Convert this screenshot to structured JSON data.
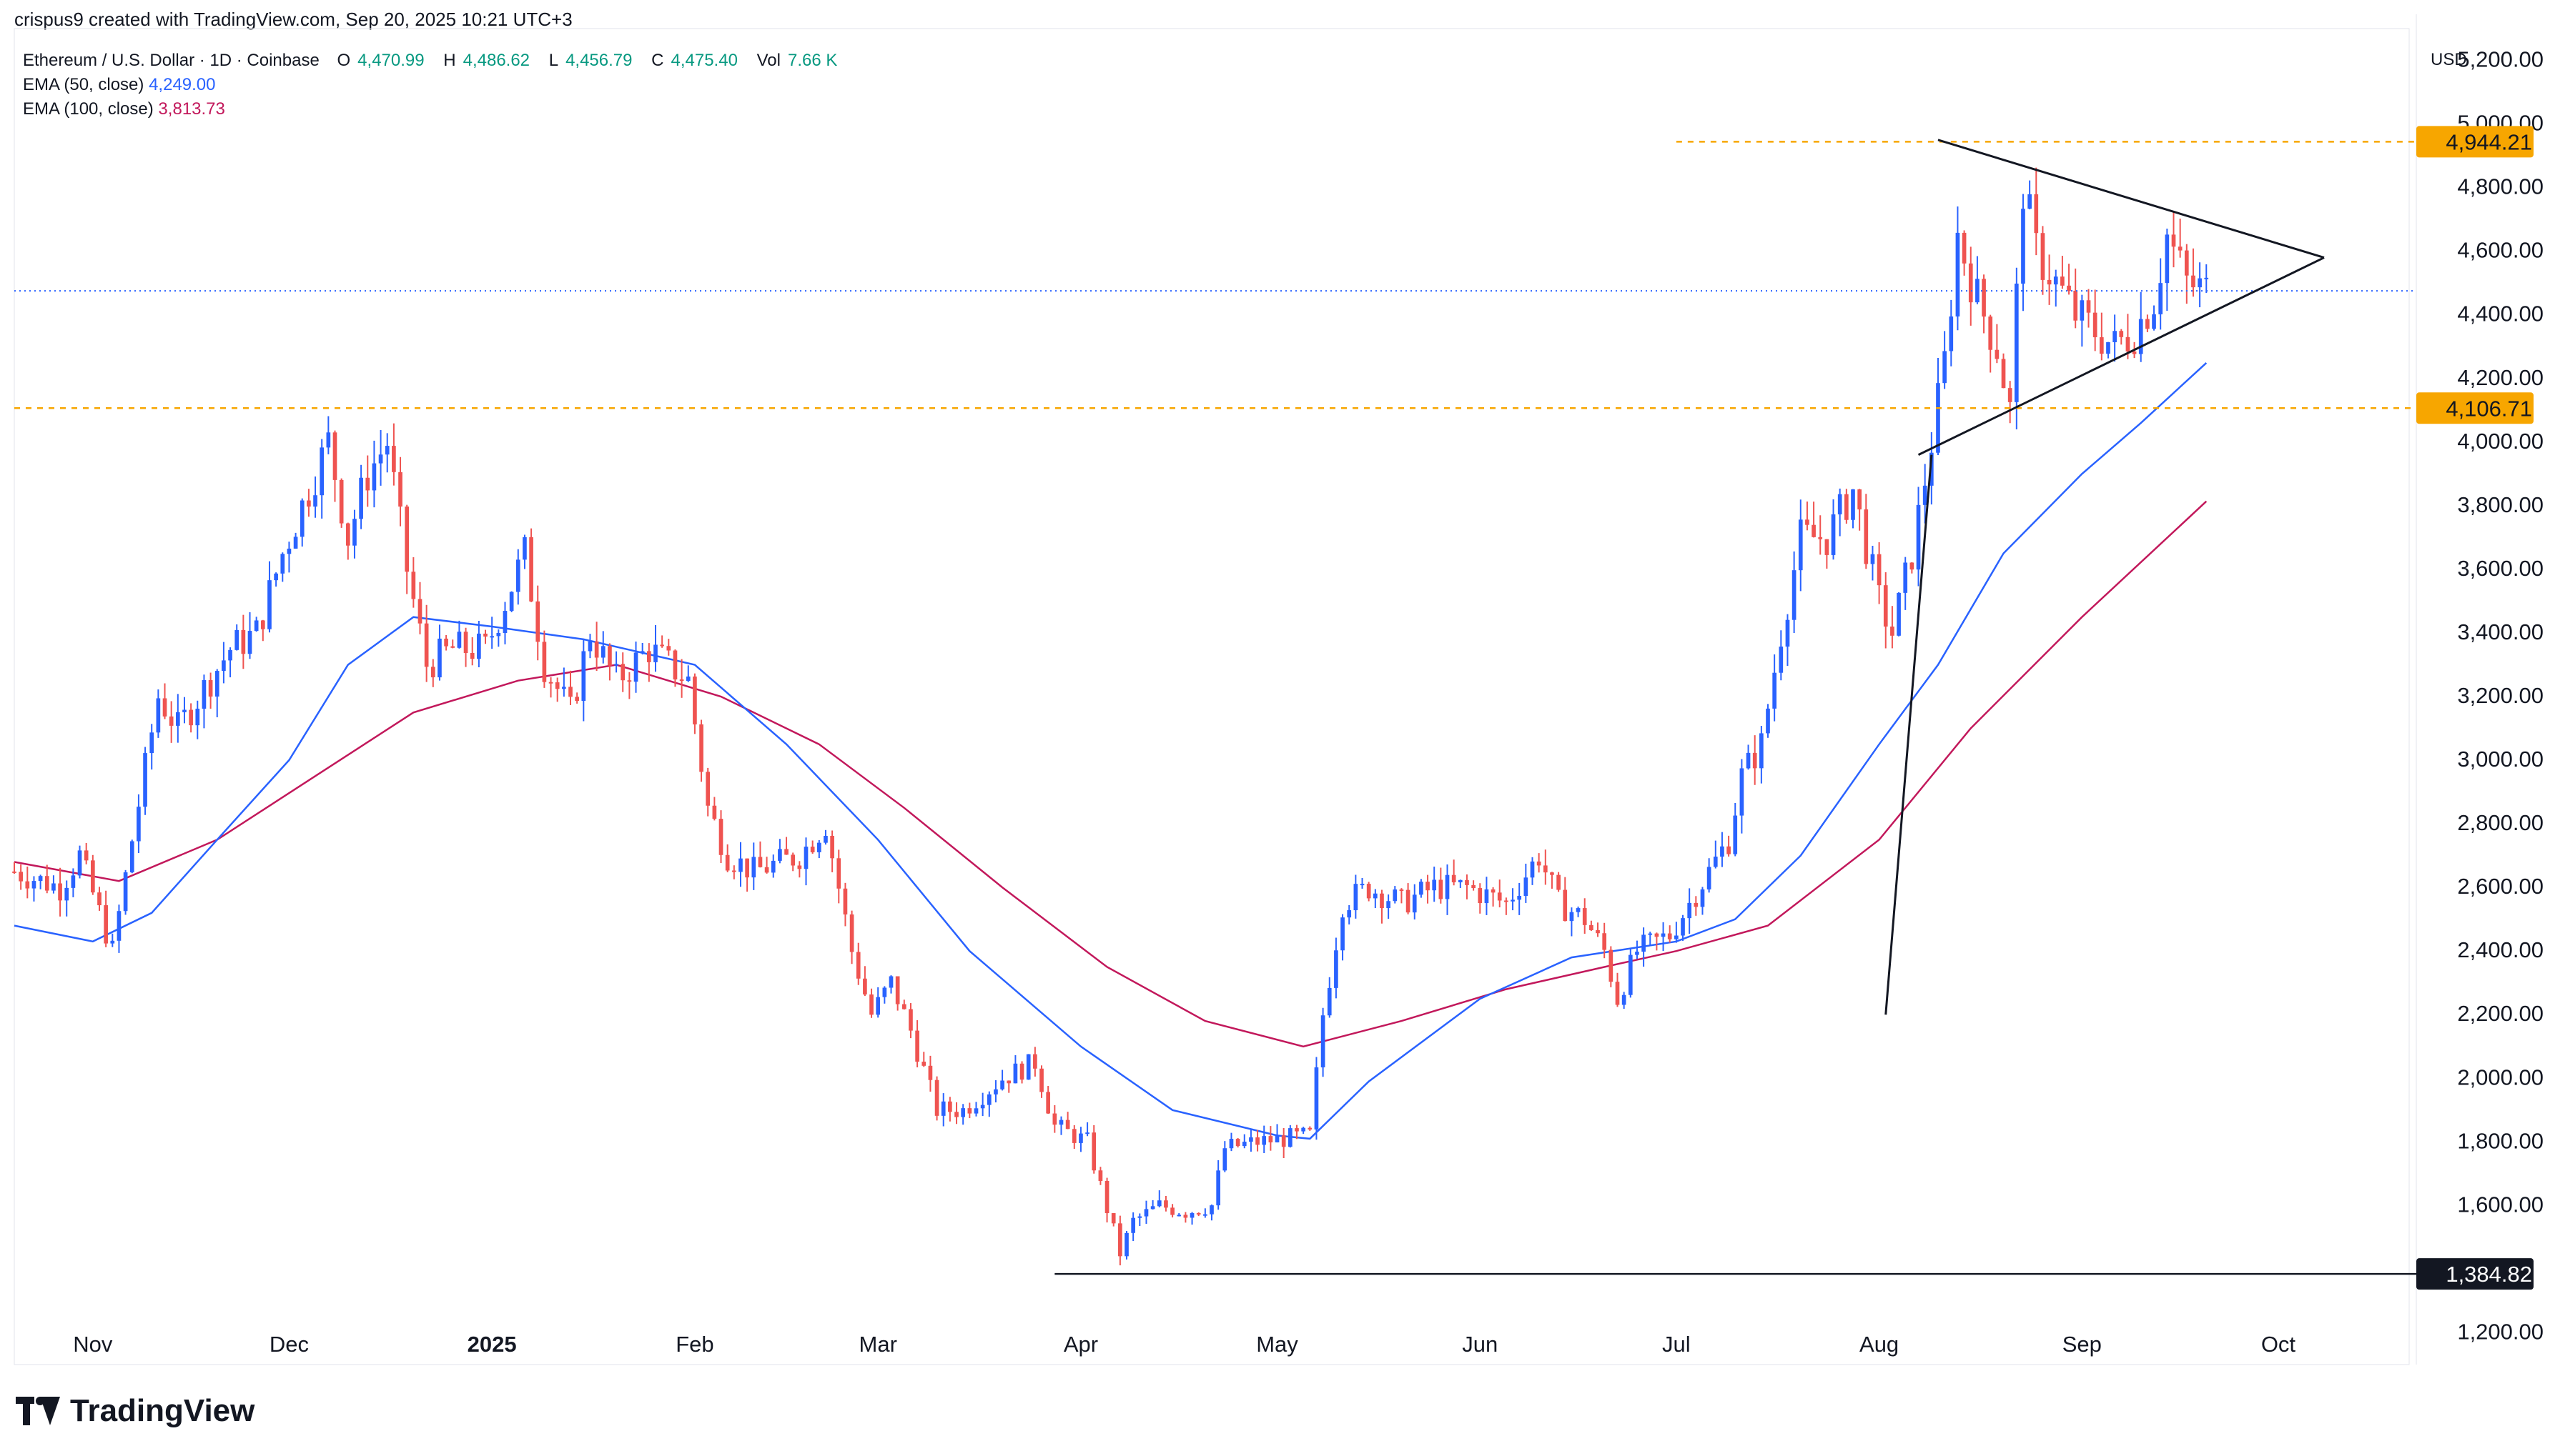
{
  "header": {
    "created_by": "crispus9 created with TradingView.com, Sep 20, 2025 10:21 UTC+3"
  },
  "legend": {
    "symbol": "Ethereum / U.S. Dollar · 1D · Coinbase",
    "ohlc": [
      {
        "k": "O",
        "v": "4,470.99"
      },
      {
        "k": "H",
        "v": "4,486.62"
      },
      {
        "k": "L",
        "v": "4,456.79"
      },
      {
        "k": "C",
        "v": "4,475.40"
      },
      {
        "k": "Vol",
        "v": "7.66 K"
      }
    ],
    "ema50_label": "EMA (50, close)",
    "ema50_value": "4,249.00",
    "ema100_label": "EMA (100, close)",
    "ema100_value": "3,813.73"
  },
  "axis": {
    "currency": "USD",
    "y_ticks": [
      "1,200.00",
      "1,600.00",
      "1,800.00",
      "2,000.00",
      "2,200.00",
      "2,400.00",
      "2,600.00",
      "2,800.00",
      "3,000.00",
      "3,200.00",
      "3,400.00",
      "3,600.00",
      "3,800.00",
      "4,000.00",
      "4,200.00",
      "4,400.00",
      "4,600.00",
      "4,800.00",
      "5,000.00",
      "5,200.00"
    ],
    "y_tick_values": [
      1200,
      1600,
      1800,
      2000,
      2200,
      2400,
      2600,
      2800,
      3000,
      3200,
      3400,
      3600,
      3800,
      4000,
      4200,
      4400,
      4600,
      4800,
      5000,
      5200
    ],
    "x_ticks": [
      "Nov",
      "Dec",
      "2025",
      "Feb",
      "Mar",
      "Apr",
      "May",
      "Jun",
      "Jul",
      "Aug",
      "Sep",
      "Oct"
    ],
    "x_tick_dates": [
      "2024-11-01",
      "2024-12-01",
      "2025-01-01",
      "2025-02-01",
      "2025-03-01",
      "2025-04-01",
      "2025-05-01",
      "2025-06-01",
      "2025-07-01",
      "2025-08-01",
      "2025-09-01",
      "2025-10-01"
    ],
    "bold_x_tick": "2025"
  },
  "price_labels": {
    "resistance": "4,944.21",
    "support": "4,106.71",
    "low": "1,384.82"
  },
  "brand": "TradingView",
  "colors": {
    "up": "#2962ff",
    "down": "#ef5350",
    "ema50": "#2962ff",
    "ema100": "#c2185b",
    "level": "#f7a600",
    "current": "#2962ff"
  },
  "chart_data": {
    "type": "candlestick",
    "ylim": [
      1100,
      5300
    ],
    "start_date": "2024-10-20",
    "end_date": "2025-10-21",
    "levels": [
      {
        "label": "4,944.21",
        "value": 4944.21,
        "style": "dashed",
        "from_date": "2025-07-01"
      },
      {
        "label": "4,106.71",
        "value": 4106.71,
        "style": "dashed",
        "from_date": "2024-10-20"
      },
      {
        "label": "1,384.82",
        "value": 1384.82,
        "style": "solid",
        "from_date": "2025-03-28"
      }
    ],
    "current_price": 4475.4,
    "trendlines": [
      {
        "from": [
          "2025-08-10",
          4950
        ],
        "to": [
          "2025-10-08",
          4580
        ]
      },
      {
        "from": [
          "2025-08-07",
          3960
        ],
        "to": [
          "2025-10-08",
          4580
        ]
      },
      {
        "from": [
          "2025-08-02",
          2200
        ],
        "to": [
          "2025-08-09",
          3960
        ]
      }
    ],
    "price_path": [
      [
        "2024-10-20",
        2650
      ],
      [
        "2024-10-27",
        2600
      ],
      [
        "2024-10-30",
        2700
      ],
      [
        "2024-11-04",
        2400
      ],
      [
        "2024-11-07",
        2750
      ],
      [
        "2024-11-11",
        3200
      ],
      [
        "2024-11-14",
        3100
      ],
      [
        "2024-11-22",
        3350
      ],
      [
        "2024-11-26",
        3400
      ],
      [
        "2024-11-30",
        3650
      ],
      [
        "2024-12-04",
        3850
      ],
      [
        "2024-12-07",
        4000
      ],
      [
        "2024-12-10",
        3700
      ],
      [
        "2024-12-13",
        3900
      ],
      [
        "2024-12-16",
        4000
      ],
      [
        "2024-12-19",
        3600
      ],
      [
        "2024-12-22",
        3300
      ],
      [
        "2024-12-26",
        3350
      ],
      [
        "2024-12-31",
        3350
      ],
      [
        "2025-01-06",
        3650
      ],
      [
        "2025-01-09",
        3300
      ],
      [
        "2025-01-13",
        3150
      ],
      [
        "2025-01-16",
        3400
      ],
      [
        "2025-01-20",
        3250
      ],
      [
        "2025-01-25",
        3350
      ],
      [
        "2025-01-31",
        3250
      ],
      [
        "2025-02-03",
        2850
      ],
      [
        "2025-02-06",
        2700
      ],
      [
        "2025-02-10",
        2650
      ],
      [
        "2025-02-17",
        2700
      ],
      [
        "2025-02-21",
        2800
      ],
      [
        "2025-02-25",
        2400
      ],
      [
        "2025-02-28",
        2200
      ],
      [
        "2025-03-03",
        2300
      ],
      [
        "2025-03-06",
        2150
      ],
      [
        "2025-03-10",
        1900
      ],
      [
        "2025-03-14",
        1900
      ],
      [
        "2025-03-20",
        2000
      ],
      [
        "2025-03-25",
        2050
      ],
      [
        "2025-03-28",
        1850
      ],
      [
        "2025-04-02",
        1800
      ],
      [
        "2025-04-07",
        1450
      ],
      [
        "2025-04-09",
        1550
      ],
      [
        "2025-04-13",
        1600
      ],
      [
        "2025-04-17",
        1580
      ],
      [
        "2025-04-21",
        1600
      ],
      [
        "2025-04-23",
        1780
      ],
      [
        "2025-04-28",
        1800
      ],
      [
        "2025-05-06",
        1820
      ],
      [
        "2025-05-08",
        2200
      ],
      [
        "2025-05-11",
        2550
      ],
      [
        "2025-05-15",
        2600
      ],
      [
        "2025-05-20",
        2550
      ],
      [
        "2025-05-25",
        2600
      ],
      [
        "2025-05-30",
        2600
      ],
      [
        "2025-06-05",
        2550
      ],
      [
        "2025-06-10",
        2700
      ],
      [
        "2025-06-13",
        2550
      ],
      [
        "2025-06-17",
        2500
      ],
      [
        "2025-06-20",
        2400
      ],
      [
        "2025-06-22",
        2250
      ],
      [
        "2025-06-25",
        2400
      ],
      [
        "2025-06-30",
        2450
      ],
      [
        "2025-07-03",
        2550
      ],
      [
        "2025-07-09",
        2750
      ],
      [
        "2025-07-11",
        2950
      ],
      [
        "2025-07-14",
        3050
      ],
      [
        "2025-07-17",
        3400
      ],
      [
        "2025-07-20",
        3700
      ],
      [
        "2025-07-24",
        3700
      ],
      [
        "2025-07-28",
        3850
      ],
      [
        "2025-08-01",
        3500
      ],
      [
        "2025-08-03",
        3400
      ],
      [
        "2025-08-06",
        3650
      ],
      [
        "2025-08-09",
        4000
      ],
      [
        "2025-08-11",
        4250
      ],
      [
        "2025-08-13",
        4650
      ],
      [
        "2025-08-16",
        4450
      ],
      [
        "2025-08-19",
        4300
      ],
      [
        "2025-08-21",
        4100
      ],
      [
        "2025-08-23",
        4800
      ],
      [
        "2025-08-25",
        4600
      ],
      [
        "2025-08-28",
        4500
      ],
      [
        "2025-08-31",
        4400
      ],
      [
        "2025-09-03",
        4350
      ],
      [
        "2025-09-06",
        4300
      ],
      [
        "2025-09-09",
        4350
      ],
      [
        "2025-09-12",
        4450
      ],
      [
        "2025-09-14",
        4650
      ],
      [
        "2025-09-17",
        4500
      ],
      [
        "2025-09-20",
        4475
      ]
    ],
    "ema50_path": [
      [
        "2024-10-20",
        2480
      ],
      [
        "2024-11-01",
        2430
      ],
      [
        "2024-11-10",
        2520
      ],
      [
        "2024-11-20",
        2750
      ],
      [
        "2024-12-01",
        3000
      ],
      [
        "2024-12-10",
        3300
      ],
      [
        "2024-12-20",
        3450
      ],
      [
        "2025-01-01",
        3420
      ],
      [
        "2025-01-15",
        3380
      ],
      [
        "2025-02-01",
        3300
      ],
      [
        "2025-02-15",
        3050
      ],
      [
        "2025-03-01",
        2750
      ],
      [
        "2025-03-15",
        2400
      ],
      [
        "2025-04-01",
        2100
      ],
      [
        "2025-04-15",
        1900
      ],
      [
        "2025-05-01",
        1820
      ],
      [
        "2025-05-06",
        1810
      ],
      [
        "2025-05-15",
        1990
      ],
      [
        "2025-06-01",
        2250
      ],
      [
        "2025-06-15",
        2380
      ],
      [
        "2025-07-01",
        2430
      ],
      [
        "2025-07-10",
        2500
      ],
      [
        "2025-07-20",
        2700
      ],
      [
        "2025-08-01",
        3050
      ],
      [
        "2025-08-10",
        3300
      ],
      [
        "2025-08-20",
        3650
      ],
      [
        "2025-09-01",
        3900
      ],
      [
        "2025-09-10",
        4060
      ],
      [
        "2025-09-20",
        4249
      ]
    ],
    "ema100_path": [
      [
        "2024-10-20",
        2680
      ],
      [
        "2024-11-05",
        2620
      ],
      [
        "2024-11-20",
        2750
      ],
      [
        "2024-12-05",
        2950
      ],
      [
        "2024-12-20",
        3150
      ],
      [
        "2025-01-05",
        3250
      ],
      [
        "2025-01-20",
        3300
      ],
      [
        "2025-02-05",
        3200
      ],
      [
        "2025-02-20",
        3050
      ],
      [
        "2025-03-05",
        2850
      ],
      [
        "2025-03-20",
        2600
      ],
      [
        "2025-04-05",
        2350
      ],
      [
        "2025-04-20",
        2180
      ],
      [
        "2025-05-05",
        2100
      ],
      [
        "2025-05-20",
        2180
      ],
      [
        "2025-06-05",
        2280
      ],
      [
        "2025-06-20",
        2350
      ],
      [
        "2025-07-01",
        2400
      ],
      [
        "2025-07-15",
        2480
      ],
      [
        "2025-08-01",
        2750
      ],
      [
        "2025-08-15",
        3100
      ],
      [
        "2025-09-01",
        3450
      ],
      [
        "2025-09-20",
        3813.73
      ]
    ]
  }
}
